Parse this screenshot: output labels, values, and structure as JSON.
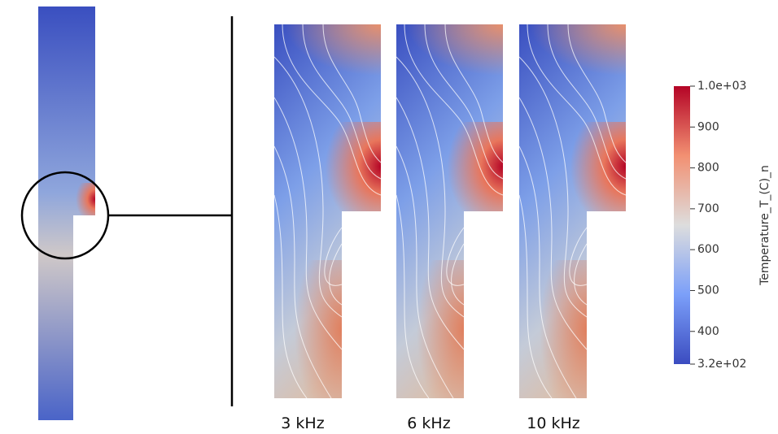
{
  "panels": [
    {
      "label": "3 kHz"
    },
    {
      "label": "6 kHz"
    },
    {
      "label": "10 kHz"
    }
  ],
  "colorbar": {
    "title": "Temperature_T_(C)_n",
    "lim": [
      320,
      1000
    ],
    "ticks": [
      {
        "value": 1000,
        "label": "1.0e+03"
      },
      900,
      800,
      700,
      600,
      500,
      400,
      {
        "value": 320,
        "label": "3.2e+02"
      }
    ]
  }
}
